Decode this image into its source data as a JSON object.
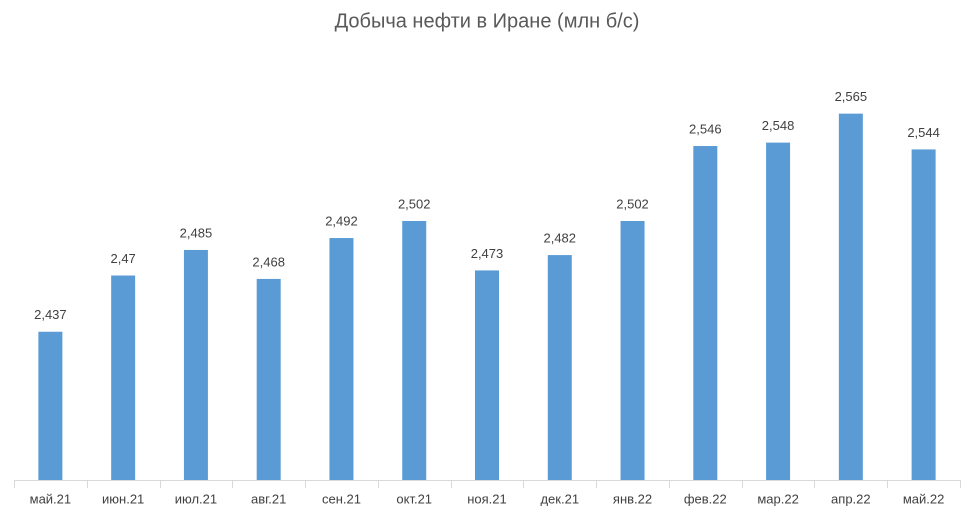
{
  "chart_data": {
    "type": "bar",
    "title": "Добыча нефти в Иране (млн б/с)",
    "categories": [
      "май.21",
      "июн.21",
      "июл.21",
      "авг.21",
      "сен.21",
      "окт.21",
      "ноя.21",
      "дек.21",
      "янв.22",
      "фев.22",
      "мар.22",
      "апр.22",
      "май.22"
    ],
    "values": [
      2.437,
      2.47,
      2.485,
      2.468,
      2.492,
      2.502,
      2.473,
      2.482,
      2.502,
      2.546,
      2.548,
      2.565,
      2.544
    ],
    "value_labels": [
      "2,437",
      "2,47",
      "2,485",
      "2,468",
      "2,492",
      "2,502",
      "2,473",
      "2,482",
      "2,502",
      "2,546",
      "2,548",
      "2,565",
      "2,544"
    ],
    "color": "#5b9bd5",
    "ylim": [
      2.35,
      2.6
    ]
  }
}
